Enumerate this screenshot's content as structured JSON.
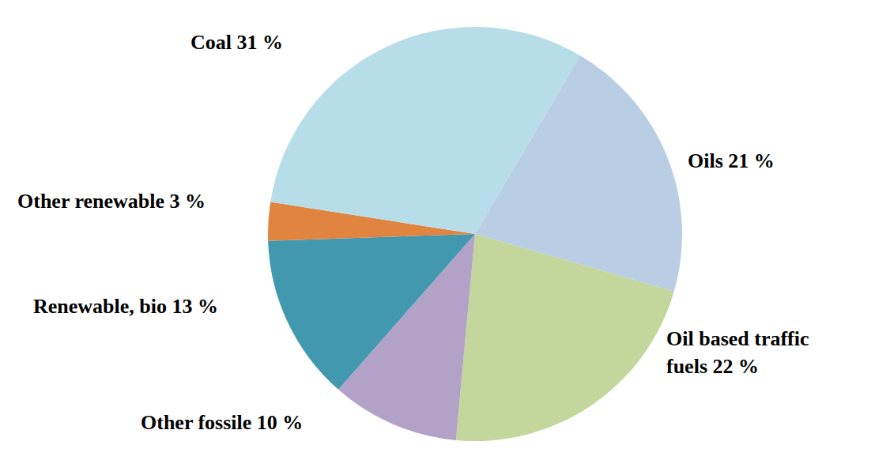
{
  "chart_data": {
    "type": "pie",
    "categories": [
      "Oils",
      "Oil based traffic fuels",
      "Other fossile",
      "Renewable, bio",
      "Other renewable",
      "Coal"
    ],
    "values": [
      21,
      22,
      10,
      13,
      3,
      31
    ],
    "value_labels": [
      "21 %",
      "22 %",
      "10 %",
      "13 %",
      "3 %",
      "31 %"
    ],
    "colors": [
      "#b9cde5",
      "#c3d69b",
      "#b3a2c7",
      "#4198af",
      "#e0843f",
      "#b7dde8"
    ],
    "data_labels": true
  }
}
